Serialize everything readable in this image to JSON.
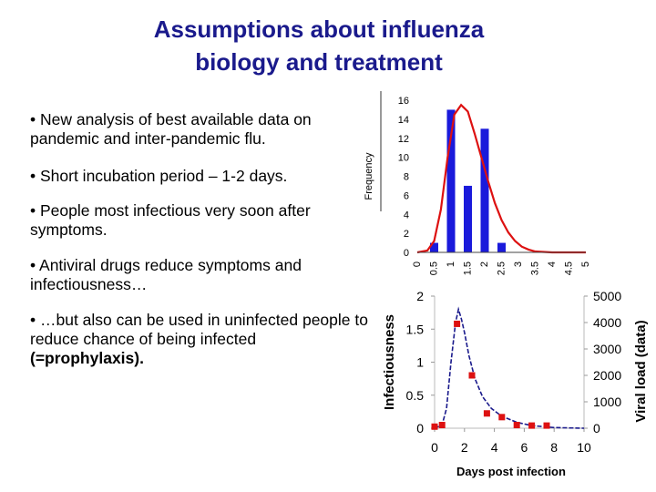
{
  "title": {
    "line1": "Assumptions about influenza",
    "line2": "biology and treatment"
  },
  "bullets": [
    {
      "text": "• New analysis of best available data on pandemic and inter-pandemic flu."
    },
    {
      "text": "• Short incubation period – 1-2 days."
    },
    {
      "text": "• People most infectious very soon after symptoms."
    },
    {
      "text": "• Antiviral drugs reduce symptoms and infectiousness…"
    },
    {
      "text": "• …but also can be used in uninfected people to reduce chance of being infected ",
      "strong": "(=prophylaxis)."
    }
  ],
  "chart_data": [
    {
      "type": "bar",
      "ylabel": "Frequency",
      "xlabel": "",
      "x_ticks": [
        "0",
        "0.5",
        "1",
        "1.5",
        "2",
        "2.5",
        "3",
        "3.5",
        "4",
        "4.5",
        "5"
      ],
      "y_ticks": [
        "0",
        "2",
        "4",
        "6",
        "8",
        "10",
        "12",
        "14",
        "16"
      ],
      "xlim": [
        0,
        5
      ],
      "ylim": [
        0,
        16
      ],
      "bar_color": "#1a1adb",
      "bars": [
        {
          "x": 0.5,
          "y": 1
        },
        {
          "x": 1.0,
          "y": 15
        },
        {
          "x": 1.5,
          "y": 7
        },
        {
          "x": 2.0,
          "y": 13
        },
        {
          "x": 2.5,
          "y": 1
        }
      ],
      "curve_color": "#dd1111",
      "curve": [
        {
          "x": 0,
          "y": 0
        },
        {
          "x": 0.3,
          "y": 0.2
        },
        {
          "x": 0.5,
          "y": 1.2
        },
        {
          "x": 0.7,
          "y": 4.5
        },
        {
          "x": 0.9,
          "y": 10
        },
        {
          "x": 1.1,
          "y": 14.5
        },
        {
          "x": 1.3,
          "y": 15.5
        },
        {
          "x": 1.5,
          "y": 14.8
        },
        {
          "x": 1.7,
          "y": 12.5
        },
        {
          "x": 1.9,
          "y": 10
        },
        {
          "x": 2.1,
          "y": 7.5
        },
        {
          "x": 2.3,
          "y": 5.2
        },
        {
          "x": 2.5,
          "y": 3.4
        },
        {
          "x": 2.7,
          "y": 2.1
        },
        {
          "x": 2.9,
          "y": 1.2
        },
        {
          "x": 3.1,
          "y": 0.6
        },
        {
          "x": 3.3,
          "y": 0.3
        },
        {
          "x": 3.5,
          "y": 0.1
        },
        {
          "x": 4.0,
          "y": 0
        },
        {
          "x": 5.0,
          "y": 0
        }
      ]
    },
    {
      "type": "line",
      "xlabel": "Days post infection",
      "ylabel": "Infectiousness",
      "y2label": "Viral load (data)",
      "x_ticks": [
        "0",
        "2",
        "4",
        "6",
        "8",
        "10"
      ],
      "y_ticks": [
        "0",
        "0.5",
        "1",
        "1.5",
        "2"
      ],
      "y2_ticks": [
        "0",
        "1000",
        "2000",
        "3000",
        "4000",
        "5000"
      ],
      "xlim": [
        0,
        10
      ],
      "ylim": [
        0,
        2
      ],
      "y2lim": [
        0,
        5000
      ],
      "curve_color": "#1a1a8c",
      "curve": [
        {
          "x": 0,
          "y": 0
        },
        {
          "x": 0.5,
          "y": 0.05
        },
        {
          "x": 0.8,
          "y": 0.3
        },
        {
          "x": 1.1,
          "y": 1.0
        },
        {
          "x": 1.4,
          "y": 1.6
        },
        {
          "x": 1.6,
          "y": 1.8
        },
        {
          "x": 1.8,
          "y": 1.65
        },
        {
          "x": 2.0,
          "y": 1.45
        },
        {
          "x": 2.3,
          "y": 1.1
        },
        {
          "x": 2.7,
          "y": 0.75
        },
        {
          "x": 3.2,
          "y": 0.48
        },
        {
          "x": 3.8,
          "y": 0.3
        },
        {
          "x": 4.5,
          "y": 0.18
        },
        {
          "x": 5.5,
          "y": 0.09
        },
        {
          "x": 6.5,
          "y": 0.04
        },
        {
          "x": 8,
          "y": 0.01
        },
        {
          "x": 10,
          "y": 0
        }
      ],
      "points_color": "#dd1111",
      "points_viral_load": [
        {
          "x": 0,
          "y": 60
        },
        {
          "x": 0.5,
          "y": 120
        },
        {
          "x": 1.5,
          "y": 3950
        },
        {
          "x": 2.5,
          "y": 2000
        },
        {
          "x": 3.5,
          "y": 560
        },
        {
          "x": 4.5,
          "y": 420
        },
        {
          "x": 5.5,
          "y": 120
        },
        {
          "x": 6.5,
          "y": 100
        },
        {
          "x": 7.5,
          "y": 100
        }
      ]
    }
  ]
}
